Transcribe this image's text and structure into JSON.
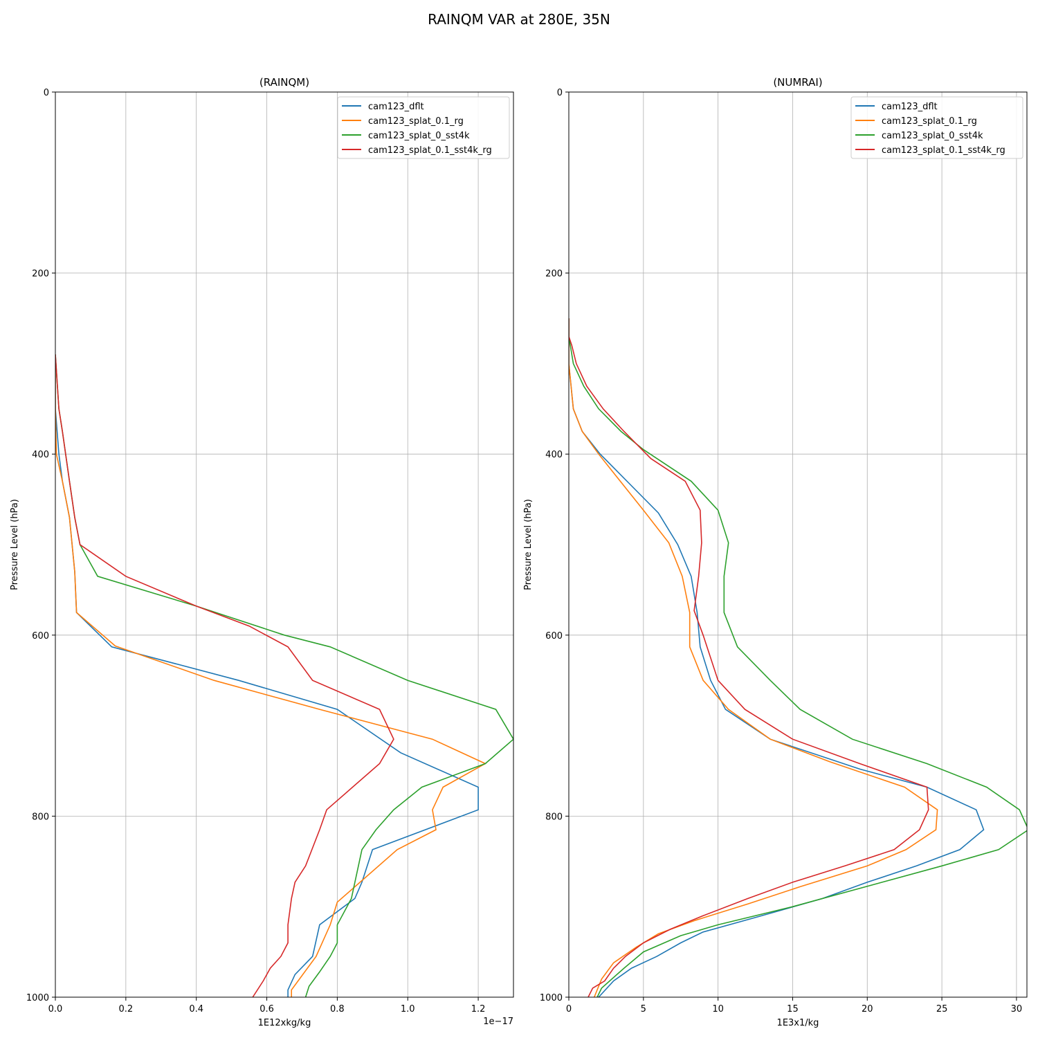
{
  "figure": {
    "title": "RAINQM VAR at 280E, 35N"
  },
  "colors": {
    "cam123_dflt": "#1f77b4",
    "cam123_splat_0.1_rg": "#ff7f0e",
    "cam123_splat_0_sst4k": "#2ca02c",
    "cam123_splat_0.1_sst4k_rg": "#d62728"
  },
  "chart_data": [
    {
      "type": "line",
      "title": "(RAINQM)",
      "xlabel": "1E12xkg/kg",
      "ylabel": "Pressure Level (hPa)",
      "x_offset_label": "1e−17",
      "xlim": [
        0,
        1.3
      ],
      "ylim": [
        1000,
        0
      ],
      "xticks": [
        0.0,
        0.2,
        0.4,
        0.6,
        0.8,
        1.0,
        1.2
      ],
      "xtick_labels": [
        "0.0",
        "0.2",
        "0.4",
        "0.6",
        "0.8",
        "1.0",
        "1.2"
      ],
      "yticks": [
        0,
        200,
        400,
        600,
        800,
        1000
      ],
      "ytick_labels": [
        "0",
        "200",
        "400",
        "600",
        "800",
        "1000"
      ],
      "grid": true,
      "legend": "top-right",
      "series": [
        {
          "name": "cam123_dflt",
          "points": [
            [
              0.0,
              290
            ],
            [
              0.0,
              350
            ],
            [
              0.01,
              400
            ],
            [
              0.02,
              430
            ],
            [
              0.04,
              470
            ],
            [
              0.055,
              530
            ],
            [
              0.06,
              575
            ],
            [
              0.16,
              613
            ],
            [
              0.52,
              650
            ],
            [
              0.8,
              682
            ],
            [
              0.98,
              730
            ],
            [
              1.2,
              768
            ],
            [
              1.2,
              793
            ],
            [
              0.9,
              837
            ],
            [
              0.87,
              873
            ],
            [
              0.85,
              891
            ],
            [
              0.75,
              920
            ],
            [
              0.73,
              955
            ],
            [
              0.68,
              975
            ],
            [
              0.66,
              992
            ],
            [
              0.66,
              1000
            ]
          ]
        },
        {
          "name": "cam123_splat_0.1_rg",
          "points": [
            [
              0.0,
              290
            ],
            [
              0.0,
              350
            ],
            [
              0.003,
              400
            ],
            [
              0.02,
              430
            ],
            [
              0.04,
              470
            ],
            [
              0.055,
              530
            ],
            [
              0.06,
              575
            ],
            [
              0.17,
              612
            ],
            [
              0.45,
              650
            ],
            [
              0.75,
              682
            ],
            [
              1.07,
              715
            ],
            [
              1.22,
              742
            ],
            [
              1.1,
              768
            ],
            [
              1.07,
              793
            ],
            [
              1.08,
              815
            ],
            [
              0.97,
              837
            ],
            [
              0.8,
              895
            ],
            [
              0.78,
              920
            ],
            [
              0.74,
              955
            ],
            [
              0.67,
              992
            ],
            [
              0.67,
              1000
            ]
          ]
        },
        {
          "name": "cam123_splat_0_sst4k",
          "points": [
            [
              0.0,
              290
            ],
            [
              0.01,
              350
            ],
            [
              0.02,
              375
            ],
            [
              0.04,
              430
            ],
            [
              0.055,
              470
            ],
            [
              0.07,
              500
            ],
            [
              0.12,
              535
            ],
            [
              0.4,
              568
            ],
            [
              0.65,
              600
            ],
            [
              0.78,
              613
            ],
            [
              1.0,
              650
            ],
            [
              1.25,
              682
            ],
            [
              1.3,
              715
            ],
            [
              1.22,
              742
            ],
            [
              1.04,
              768
            ],
            [
              0.96,
              793
            ],
            [
              0.91,
              815
            ],
            [
              0.87,
              837
            ],
            [
              0.84,
              891
            ],
            [
              0.8,
              920
            ],
            [
              0.8,
              940
            ],
            [
              0.78,
              955
            ],
            [
              0.75,
              972
            ],
            [
              0.72,
              988
            ],
            [
              0.71,
              1000
            ]
          ]
        },
        {
          "name": "cam123_splat_0.1_sst4k_rg",
          "points": [
            [
              0.0,
              290
            ],
            [
              0.01,
              350
            ],
            [
              0.02,
              375
            ],
            [
              0.04,
              430
            ],
            [
              0.055,
              470
            ],
            [
              0.07,
              500
            ],
            [
              0.2,
              535
            ],
            [
              0.4,
              568
            ],
            [
              0.55,
              590
            ],
            [
              0.66,
              613
            ],
            [
              0.73,
              650
            ],
            [
              0.92,
              682
            ],
            [
              0.96,
              715
            ],
            [
              0.92,
              742
            ],
            [
              0.77,
              793
            ],
            [
              0.75,
              815
            ],
            [
              0.71,
              855
            ],
            [
              0.68,
              873
            ],
            [
              0.67,
              891
            ],
            [
              0.66,
              920
            ],
            [
              0.66,
              940
            ],
            [
              0.64,
              955
            ],
            [
              0.61,
              968
            ],
            [
              0.59,
              982
            ],
            [
              0.56,
              1000
            ]
          ]
        }
      ]
    },
    {
      "type": "line",
      "title": "(NUMRAI)",
      "xlabel": "1E3x1/kg",
      "ylabel": "Pressure Level (hPa)",
      "xlim": [
        0,
        30.7
      ],
      "ylim": [
        1000,
        0
      ],
      "xticks": [
        0,
        5,
        10,
        15,
        20,
        25,
        30
      ],
      "xtick_labels": [
        "0",
        "5",
        "10",
        "15",
        "20",
        "25",
        "30"
      ],
      "yticks": [
        0,
        200,
        400,
        600,
        800,
        1000
      ],
      "ytick_labels": [
        "0",
        "200",
        "400",
        "600",
        "800",
        "1000"
      ],
      "grid": true,
      "legend": "top-right",
      "series": [
        {
          "name": "cam123_dflt",
          "points": [
            [
              0,
              250
            ],
            [
              0,
              300
            ],
            [
              0.3,
              350
            ],
            [
              0.9,
              375
            ],
            [
              2.1,
              400
            ],
            [
              4.5,
              440
            ],
            [
              6,
              465
            ],
            [
              7.3,
              500
            ],
            [
              8.2,
              535
            ],
            [
              8.6,
              575
            ],
            [
              8.8,
              613
            ],
            [
              9.5,
              650
            ],
            [
              10.5,
              682
            ],
            [
              13.5,
              715
            ],
            [
              19.5,
              748
            ],
            [
              24,
              768
            ],
            [
              27.3,
              793
            ],
            [
              27.8,
              815
            ],
            [
              26.2,
              837
            ],
            [
              23.3,
              855
            ],
            [
              20,
              873
            ],
            [
              17,
              891
            ],
            [
              12.5,
              912
            ],
            [
              9,
              928
            ],
            [
              7.5,
              940
            ],
            [
              5.9,
              955
            ],
            [
              4.2,
              968
            ],
            [
              3,
              982
            ],
            [
              2,
              1000
            ]
          ]
        },
        {
          "name": "cam123_splat_0.1_rg",
          "points": [
            [
              0,
              250
            ],
            [
              0,
              300
            ],
            [
              0.3,
              350
            ],
            [
              0.9,
              375
            ],
            [
              2,
              400
            ],
            [
              5,
              462
            ],
            [
              6.7,
              498
            ],
            [
              7.6,
              535
            ],
            [
              8.1,
              575
            ],
            [
              8.1,
              613
            ],
            [
              9,
              650
            ],
            [
              10.7,
              682
            ],
            [
              13.5,
              715
            ],
            [
              17.5,
              740
            ],
            [
              22.5,
              768
            ],
            [
              24.7,
              793
            ],
            [
              24.6,
              815
            ],
            [
              22.6,
              837
            ],
            [
              20,
              855
            ],
            [
              15.5,
              878
            ],
            [
              12,
              897
            ],
            [
              8.5,
              915
            ],
            [
              6,
              930
            ],
            [
              4.5,
              945
            ],
            [
              3,
              962
            ],
            [
              2.2,
              980
            ],
            [
              1.7,
              1000
            ]
          ]
        },
        {
          "name": "cam123_splat_0_sst4k",
          "points": [
            [
              0,
              250
            ],
            [
              0,
              270
            ],
            [
              0.3,
              300
            ],
            [
              1,
              325
            ],
            [
              2,
              350
            ],
            [
              3.5,
              375
            ],
            [
              5,
              395
            ],
            [
              8.2,
              430
            ],
            [
              10,
              462
            ],
            [
              10.7,
              498
            ],
            [
              10.4,
              535
            ],
            [
              10.4,
              575
            ],
            [
              11.3,
              613
            ],
            [
              13.5,
              650
            ],
            [
              15.5,
              682
            ],
            [
              19,
              715
            ],
            [
              24,
              742
            ],
            [
              28,
              768
            ],
            [
              30.2,
              793
            ],
            [
              30.8,
              815
            ],
            [
              28.8,
              837
            ],
            [
              25,
              855
            ],
            [
              21,
              873
            ],
            [
              15,
              900
            ],
            [
              10,
              920
            ],
            [
              7.5,
              932
            ],
            [
              5,
              950
            ],
            [
              3.7,
              968
            ],
            [
              2.2,
              990
            ],
            [
              1.9,
              1000
            ]
          ]
        },
        {
          "name": "cam123_splat_0.1_sst4k_rg",
          "points": [
            [
              0,
              250
            ],
            [
              0,
              270
            ],
            [
              0.2,
              280
            ],
            [
              0.5,
              300
            ],
            [
              1.2,
              325
            ],
            [
              2.3,
              350
            ],
            [
              3.7,
              375
            ],
            [
              5.5,
              405
            ],
            [
              7.8,
              430
            ],
            [
              8.8,
              462
            ],
            [
              8.9,
              498
            ],
            [
              8.7,
              535
            ],
            [
              8.4,
              573
            ],
            [
              9,
              600
            ],
            [
              10,
              650
            ],
            [
              11.8,
              682
            ],
            [
              15,
              715
            ],
            [
              19.5,
              742
            ],
            [
              24,
              768
            ],
            [
              24.1,
              793
            ],
            [
              23.5,
              815
            ],
            [
              21.8,
              837
            ],
            [
              18.5,
              855
            ],
            [
              15,
              873
            ],
            [
              12,
              891
            ],
            [
              9,
              910
            ],
            [
              6.8,
              925
            ],
            [
              5,
              940
            ],
            [
              3.8,
              955
            ],
            [
              3,
              968
            ],
            [
              2.4,
              982
            ],
            [
              1.6,
              990
            ],
            [
              1.3,
              1000
            ]
          ]
        }
      ]
    }
  ]
}
